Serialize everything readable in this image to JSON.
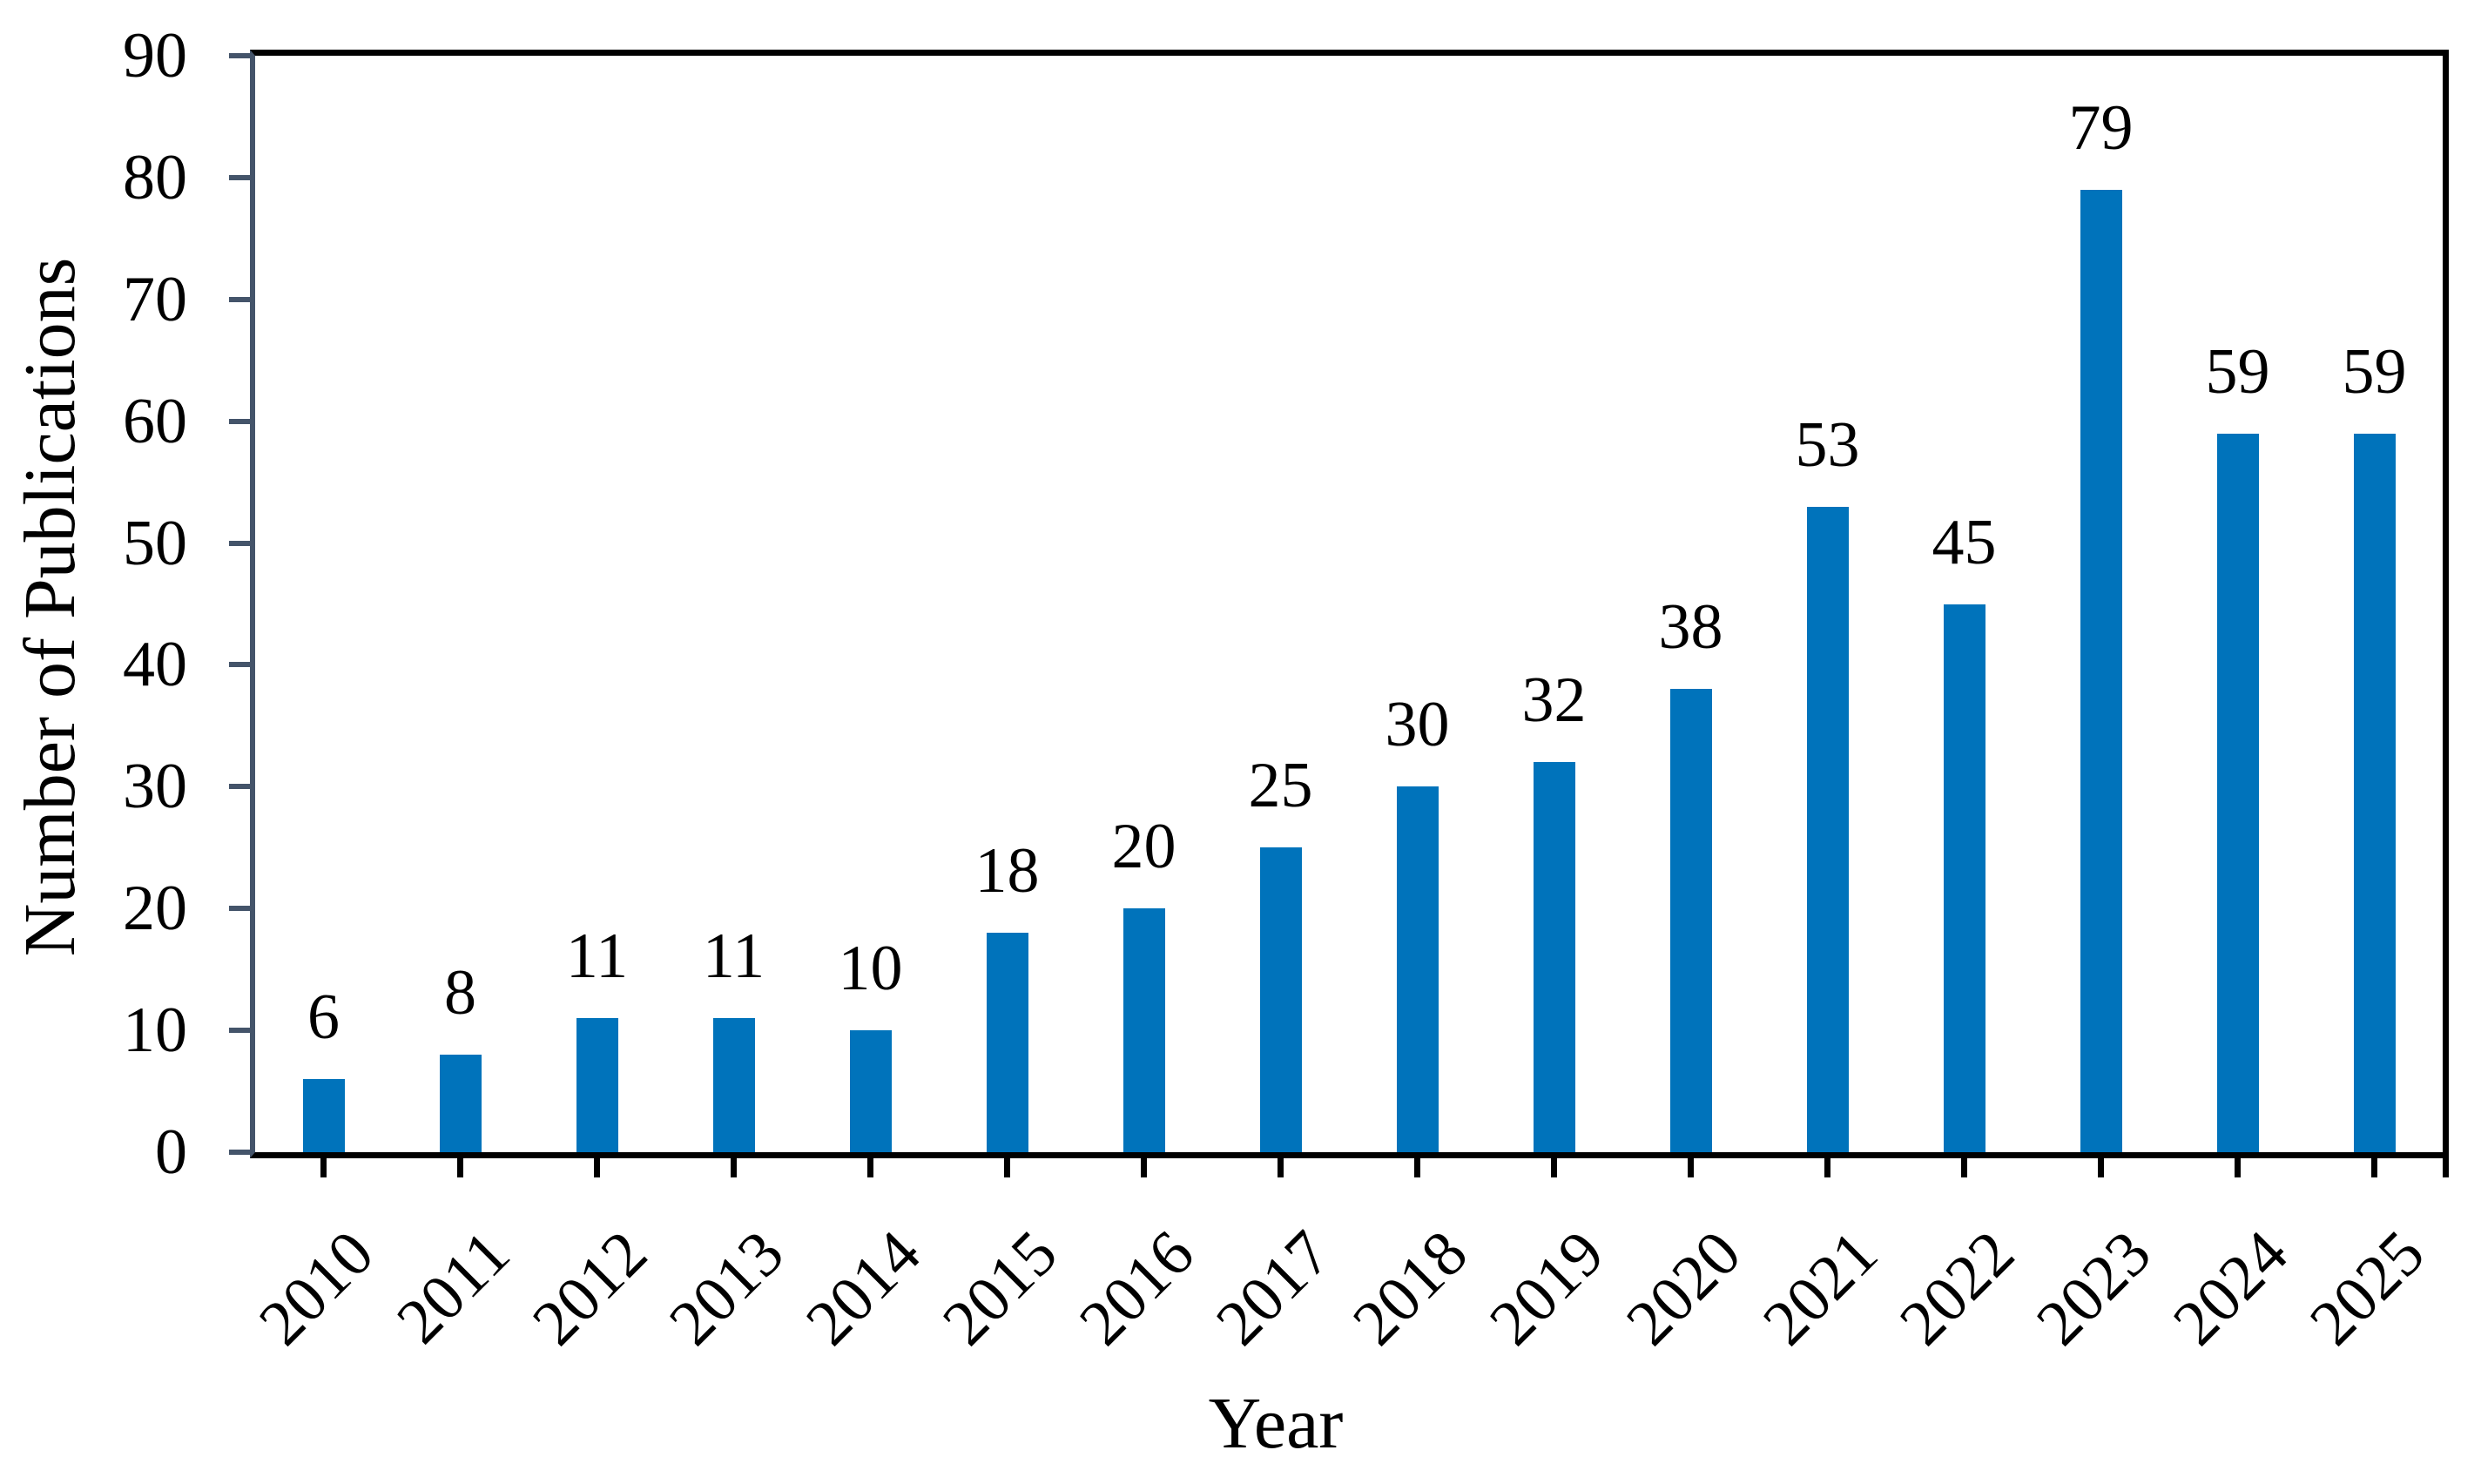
{
  "chart_data": {
    "type": "bar",
    "title": "",
    "xlabel": "Year",
    "ylabel": "Number of Publications",
    "categories": [
      "2010",
      "2011",
      "2012",
      "2013",
      "2014",
      "2015",
      "2016",
      "2017",
      "2018",
      "2019",
      "2020",
      "2021",
      "2022",
      "2023",
      "2024",
      "2025"
    ],
    "values": [
      6,
      8,
      11,
      11,
      10,
      18,
      20,
      25,
      30,
      32,
      38,
      53,
      45,
      79,
      59,
      59
    ],
    "ylim": [
      0,
      90
    ],
    "ytick_step": 10,
    "yticks": [
      0,
      10,
      20,
      30,
      40,
      50,
      60,
      70,
      80,
      90
    ],
    "x_tick_rotation_deg": 45,
    "bar_labels_shown": true,
    "grid": false,
    "legend": false,
    "colors": {
      "bar": "#0073BB",
      "axis": "#44546A",
      "frame": "#000000",
      "text": "#000000",
      "background": "#FFFFFF"
    }
  }
}
